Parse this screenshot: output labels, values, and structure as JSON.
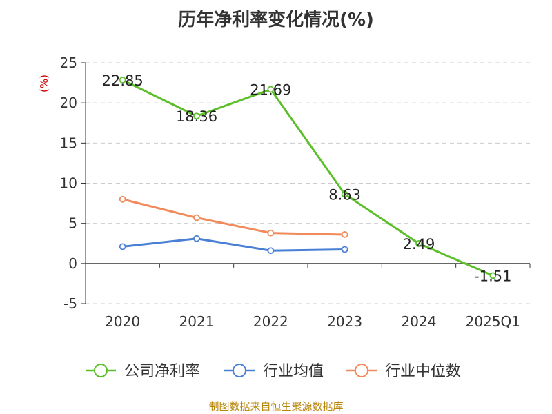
{
  "title": "历年净利率变化情况(%)",
  "unit_label": "(%)",
  "source": "制图数据来自恒生聚源数据库",
  "chart_data": {
    "type": "line",
    "title": "历年净利率变化情况(%)",
    "xlabel": "",
    "ylabel": "(%)",
    "categories": [
      "2020",
      "2021",
      "2022",
      "2023",
      "2024",
      "2025Q1"
    ],
    "ylim": [
      -5,
      25
    ],
    "yticks": [
      25,
      20,
      15,
      10,
      5,
      0,
      -5
    ],
    "grid": true,
    "legend_position": "bottom",
    "series": [
      {
        "name": "公司净利率",
        "color": "#5cbf2a",
        "values": [
          22.85,
          18.36,
          21.69,
          8.63,
          2.49,
          -1.51
        ],
        "labels": [
          "22.85",
          "18.36",
          "21.69",
          "8.63",
          "2.49",
          "-1.51"
        ]
      },
      {
        "name": "行业均值",
        "color": "#4a7fd6",
        "values": [
          2.1,
          3.1,
          1.6,
          1.75,
          null,
          null
        ]
      },
      {
        "name": "行业中位数",
        "color": "#f28b5b",
        "values": [
          8.0,
          5.7,
          3.8,
          3.6,
          null,
          null
        ]
      }
    ]
  }
}
